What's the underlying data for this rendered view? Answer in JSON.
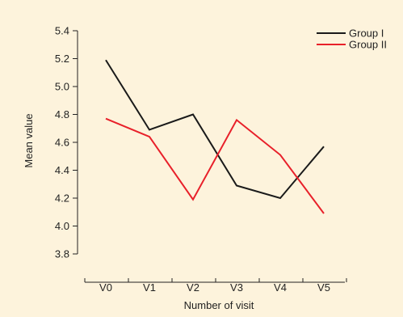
{
  "colors": {
    "background": "#fdf3dc",
    "axis": "#222222",
    "group1": "#1a1a1a",
    "group2": "#e8202a"
  },
  "chart_data": {
    "type": "line",
    "xlabel": "Number of visit",
    "ylabel": "Mean value",
    "categories": [
      "V0",
      "V1",
      "V2",
      "V3",
      "V4",
      "V5"
    ],
    "ylim": [
      3.8,
      5.4
    ],
    "yticks": [
      "3.8",
      "4.0",
      "4.2",
      "4.4",
      "4.6",
      "4.8",
      "5.0",
      "5.2",
      "5.4"
    ],
    "grid": false,
    "legend_position": "top-right",
    "series": [
      {
        "name": "Group I",
        "color": "#1a1a1a",
        "values": [
          5.19,
          4.69,
          4.8,
          4.29,
          4.2,
          4.57
        ]
      },
      {
        "name": "Group II",
        "color": "#e8202a",
        "values": [
          4.77,
          4.64,
          4.19,
          4.76,
          4.51,
          4.09
        ]
      }
    ]
  }
}
